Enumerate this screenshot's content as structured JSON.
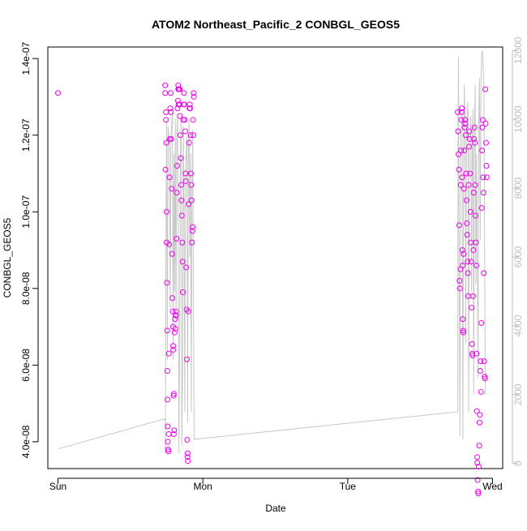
{
  "chart_data": {
    "type": "scatter",
    "title": "ATOM2 Northeast_Pacific_2 CONBGL_GEOS5",
    "xlabel": "Date",
    "ylabel": "CONBGL_GEOS5",
    "x_ticks": [
      {
        "value": 0,
        "label": "Sun"
      },
      {
        "value": 1,
        "label": "Mon"
      },
      {
        "value": 2,
        "label": "Tue"
      },
      {
        "value": 3,
        "label": "Wed"
      }
    ],
    "xlim": [
      -0.07,
      3.07
    ],
    "y_left": {
      "ylim": [
        3.3e-08,
        1.43e-07
      ],
      "ticks": [
        {
          "value": 4e-08,
          "label": "4.0e-08"
        },
        {
          "value": 6e-08,
          "label": "6.0e-08"
        },
        {
          "value": 8e-08,
          "label": "8.0e-08"
        },
        {
          "value": 1e-07,
          "label": "1.0e-07"
        },
        {
          "value": 1.2e-07,
          "label": "1.2e-07"
        },
        {
          "value": 1.4e-07,
          "label": "1.4e-07"
        }
      ]
    },
    "y_right": {
      "ylim": [
        -150,
        12100
      ],
      "ticks": [
        {
          "value": 0,
          "label": "0"
        },
        {
          "value": 2000,
          "label": "2000"
        },
        {
          "value": 4000,
          "label": "4000"
        },
        {
          "value": 6000,
          "label": "6000"
        },
        {
          "value": 8000,
          "label": "8000"
        },
        {
          "value": 10000,
          "label": "10000"
        },
        {
          "value": 12000,
          "label": "12000"
        }
      ]
    },
    "colors": {
      "points": "#ee00ee",
      "line": "#c8c8c8",
      "axis": "#000000",
      "right_axis": "#bebebe"
    },
    "series": [
      {
        "kind": "points",
        "axis": "left",
        "points": [
          [
            0.0,
            1.31e-07
          ],
          [
            0.74,
            1.33e-07
          ],
          [
            0.74,
            1.31e-07
          ],
          [
            0.745,
            1.26e-07
          ],
          [
            0.745,
            1.24e-07
          ],
          [
            0.742,
            1.11e-07
          ],
          [
            0.748,
            1.18e-07
          ],
          [
            0.75,
            1e-07
          ],
          [
            0.75,
            9.2e-08
          ],
          [
            0.752,
            8.15e-08
          ],
          [
            0.754,
            6.9e-08
          ],
          [
            0.755,
            5.85e-08
          ],
          [
            0.756,
            5.1e-08
          ],
          [
            0.758,
            4.4e-08
          ],
          [
            0.758,
            4e-08
          ],
          [
            0.76,
            3.8e-08
          ],
          [
            0.762,
            3.75e-08
          ],
          [
            0.765,
            4.2e-08
          ],
          [
            0.765,
            6.3e-08
          ],
          [
            0.768,
            9.15e-08
          ],
          [
            0.77,
            1.09e-07
          ],
          [
            0.772,
            1.19e-07
          ],
          [
            0.775,
            1.27e-07
          ],
          [
            0.778,
            1.31e-07
          ],
          [
            0.78,
            1.26e-07
          ],
          [
            0.782,
            1.19e-07
          ],
          [
            0.785,
            1.06e-07
          ],
          [
            0.788,
            8.9e-08
          ],
          [
            0.79,
            7.75e-08
          ],
          [
            0.792,
            7.4e-08
          ],
          [
            0.794,
            7e-08
          ],
          [
            0.795,
            6.5e-08
          ],
          [
            0.796,
            6.4e-08
          ],
          [
            0.798,
            5.2e-08
          ],
          [
            0.8,
            5.25e-08
          ],
          [
            0.8,
            4.2e-08
          ],
          [
            0.802,
            4.3e-08
          ],
          [
            0.805,
            6.85e-08
          ],
          [
            0.808,
            7.2e-08
          ],
          [
            0.81,
            6.95e-08
          ],
          [
            0.812,
            7.3e-08
          ],
          [
            0.815,
            7.4e-08
          ],
          [
            0.815,
            7.3e-08
          ],
          [
            0.818,
            9.3e-08
          ],
          [
            0.82,
            1.05e-07
          ],
          [
            0.822,
            1.12e-07
          ],
          [
            0.825,
            1.27e-07
          ],
          [
            0.828,
            1.29e-07
          ],
          [
            0.83,
            1.33e-07
          ],
          [
            0.83,
            1.32e-07
          ],
          [
            0.832,
            1.28e-07
          ],
          [
            0.835,
            1.32e-07
          ],
          [
            0.838,
            1.28e-07
          ],
          [
            0.84,
            1.32e-07
          ],
          [
            0.842,
            1.25e-07
          ],
          [
            0.845,
            1.2e-07
          ],
          [
            0.848,
            1.14e-07
          ],
          [
            0.85,
            1.07e-07
          ],
          [
            0.852,
            1.03e-07
          ],
          [
            0.855,
            9.9e-08
          ],
          [
            0.858,
            9.2e-08
          ],
          [
            0.86,
            8.7e-08
          ],
          [
            0.862,
            7.9e-08
          ],
          [
            0.865,
            1.24e-07
          ],
          [
            0.868,
            1.28e-07
          ],
          [
            0.87,
            1.31e-07
          ],
          [
            0.872,
            1.28e-07
          ],
          [
            0.875,
            1.24e-07
          ],
          [
            0.878,
            1.21e-07
          ],
          [
            0.88,
            1.1e-07
          ],
          [
            0.882,
            1.08e-07
          ],
          [
            0.885,
            8.55e-08
          ],
          [
            0.888,
            7.45e-08
          ],
          [
            0.89,
            6.15e-08
          ],
          [
            0.892,
            4.05e-08
          ],
          [
            0.894,
            3.6e-08
          ],
          [
            0.895,
            3.7e-08
          ],
          [
            0.897,
            3.5e-08
          ],
          [
            0.9,
            7.4e-08
          ],
          [
            0.902,
            1.02e-07
          ],
          [
            0.905,
            1.18e-07
          ],
          [
            0.908,
            1.27e-07
          ],
          [
            0.91,
            1.28e-07
          ],
          [
            0.912,
            1.27e-07
          ],
          [
            0.915,
            1.2e-07
          ],
          [
            0.918,
            1.1e-07
          ],
          [
            0.92,
            1.07e-07
          ],
          [
            0.922,
            1.03e-07
          ],
          [
            0.925,
            9.2e-08
          ],
          [
            0.928,
            9.5e-08
          ],
          [
            0.93,
            9.6e-08
          ],
          [
            0.932,
            1.24e-07
          ],
          [
            0.935,
            1.2e-07
          ],
          [
            0.937,
            1.31e-07
          ],
          [
            0.938,
            1.3e-07
          ],
          [
            2.76,
            1.26e-07
          ],
          [
            2.762,
            1.21e-07
          ],
          [
            2.765,
            1.15e-07
          ],
          [
            2.768,
            1.11e-07
          ],
          [
            2.77,
            9.65e-08
          ],
          [
            2.772,
            8.2e-08
          ],
          [
            2.775,
            8e-08
          ],
          [
            2.778,
            8.5e-08
          ],
          [
            2.78,
            1.07e-07
          ],
          [
            2.782,
            1.16e-07
          ],
          [
            2.784,
            1.24e-07
          ],
          [
            2.786,
            1.26e-07
          ],
          [
            2.788,
            1.27e-07
          ],
          [
            2.79,
            1.09e-07
          ],
          [
            2.792,
            9e-08
          ],
          [
            2.794,
            8.6e-08
          ],
          [
            2.795,
            7.2e-08
          ],
          [
            2.797,
            6.9e-08
          ],
          [
            2.798,
            6.85e-08
          ],
          [
            2.8,
            8.9e-08
          ],
          [
            2.802,
            1.06e-07
          ],
          [
            2.805,
            1.16e-07
          ],
          [
            2.808,
            1.22e-07
          ],
          [
            2.81,
            1.24e-07
          ],
          [
            2.812,
            1.23e-07
          ],
          [
            2.815,
            1.2e-07
          ],
          [
            2.818,
            1.1e-07
          ],
          [
            2.82,
            1.03e-07
          ],
          [
            2.822,
            9.7e-08
          ],
          [
            2.825,
            9.4e-08
          ],
          [
            2.828,
            8.7e-08
          ],
          [
            2.83,
            8.4e-08
          ],
          [
            2.832,
            7.8e-08
          ],
          [
            2.835,
            1.07e-07
          ],
          [
            2.838,
            1.17e-07
          ],
          [
            2.84,
            1.21e-07
          ],
          [
            2.842,
            1.19e-07
          ],
          [
            2.845,
            1.1e-07
          ],
          [
            2.848,
            1e-07
          ],
          [
            2.85,
            9.2e-08
          ],
          [
            2.852,
            8.7e-08
          ],
          [
            2.855,
            7.5e-08
          ],
          [
            2.858,
            6.55e-08
          ],
          [
            2.86,
            6.3e-08
          ],
          [
            2.862,
            6.25e-08
          ],
          [
            2.865,
            7.8e-08
          ],
          [
            2.868,
            9e-08
          ],
          [
            2.87,
            1.05e-07
          ],
          [
            2.872,
            1.19e-07
          ],
          [
            2.875,
            1.22e-07
          ],
          [
            2.878,
            1.18e-07
          ],
          [
            2.88,
            1.07e-07
          ],
          [
            2.882,
            9.9e-08
          ],
          [
            2.885,
            9.2e-08
          ],
          [
            2.888,
            8.6e-08
          ],
          [
            2.89,
            6.3e-08
          ],
          [
            2.892,
            4.8e-08
          ],
          [
            2.894,
            3.6e-08
          ],
          [
            2.895,
            3.45e-08
          ],
          [
            2.897,
            3e-08
          ],
          [
            2.9,
            2.7e-08
          ],
          [
            2.902,
            2.65e-08
          ],
          [
            2.905,
            3.35e-08
          ],
          [
            2.908,
            3.9e-08
          ],
          [
            2.91,
            4.5e-08
          ],
          [
            2.912,
            4.7e-08
          ],
          [
            2.915,
            5.85e-08
          ],
          [
            2.918,
            6.1e-08
          ],
          [
            2.92,
            5.3e-08
          ],
          [
            2.922,
            7.1e-08
          ],
          [
            2.925,
            1.01e-07
          ],
          [
            2.928,
            1.16e-07
          ],
          [
            2.93,
            1.22e-07
          ],
          [
            2.932,
            1.24e-07
          ],
          [
            2.935,
            1.09e-07
          ],
          [
            2.938,
            1.05e-07
          ],
          [
            2.94,
            8.4e-08
          ],
          [
            2.942,
            6.1e-08
          ],
          [
            2.945,
            5.7e-08
          ],
          [
            2.948,
            5.65e-08
          ],
          [
            2.95,
            1.32e-07
          ],
          [
            2.952,
            1.23e-07
          ],
          [
            2.955,
            1.18e-07
          ],
          [
            2.958,
            1.12e-07
          ],
          [
            2.96,
            1.09e-07
          ]
        ]
      },
      {
        "kind": "line",
        "axis": "right",
        "points": [
          [
            0.0,
            420
          ],
          [
            0.74,
            1300
          ],
          [
            0.742,
            300
          ],
          [
            0.745,
            6500
          ],
          [
            0.75,
            10000
          ],
          [
            0.755,
            3000
          ],
          [
            0.76,
            9800
          ],
          [
            0.77,
            9200
          ],
          [
            0.775,
            4500
          ],
          [
            0.78,
            9500
          ],
          [
            0.79,
            10200
          ],
          [
            0.795,
            3000
          ],
          [
            0.8,
            9000
          ],
          [
            0.805,
            5000
          ],
          [
            0.81,
            10000
          ],
          [
            0.815,
            4000
          ],
          [
            0.82,
            9500
          ],
          [
            0.825,
            10100
          ],
          [
            0.83,
            7000
          ],
          [
            0.835,
            300
          ],
          [
            0.84,
            3500
          ],
          [
            0.845,
            9000
          ],
          [
            0.85,
            10100
          ],
          [
            0.855,
            500
          ],
          [
            0.86,
            2600
          ],
          [
            0.865,
            9800
          ],
          [
            0.87,
            7500
          ],
          [
            0.875,
            1500
          ],
          [
            0.88,
            8500
          ],
          [
            0.89,
            9500
          ],
          [
            0.895,
            1200
          ],
          [
            0.9,
            9000
          ],
          [
            0.905,
            10000
          ],
          [
            0.91,
            6000
          ],
          [
            0.915,
            9000
          ],
          [
            0.92,
            1500
          ],
          [
            0.925,
            7800
          ],
          [
            0.93,
            9700
          ],
          [
            0.94,
            700
          ],
          [
            2.76,
            1500
          ],
          [
            2.762,
            9800
          ],
          [
            2.765,
            11800
          ],
          [
            2.77,
            5000
          ],
          [
            2.775,
            800
          ],
          [
            2.78,
            9500
          ],
          [
            2.79,
            10200
          ],
          [
            2.795,
            700
          ],
          [
            2.8,
            8500
          ],
          [
            2.805,
            11000
          ],
          [
            2.81,
            10000
          ],
          [
            2.815,
            3500
          ],
          [
            2.82,
            9700
          ],
          [
            2.83,
            10500
          ],
          [
            2.835,
            1500
          ],
          [
            2.84,
            9000
          ],
          [
            2.85,
            10100
          ],
          [
            2.855,
            5000
          ],
          [
            2.86,
            9000
          ],
          [
            2.865,
            10300
          ],
          [
            2.87,
            2000
          ],
          [
            2.875,
            9800
          ],
          [
            2.88,
            11000
          ],
          [
            2.885,
            5200
          ],
          [
            2.89,
            9000
          ],
          [
            2.9,
            2500
          ],
          [
            2.905,
            10000
          ],
          [
            2.91,
            11200
          ],
          [
            2.915,
            6500
          ],
          [
            2.92,
            11000
          ],
          [
            2.925,
            11900
          ],
          [
            2.93,
            12000
          ],
          [
            2.94,
            11000
          ],
          [
            2.95,
            2000
          ]
        ]
      }
    ]
  }
}
